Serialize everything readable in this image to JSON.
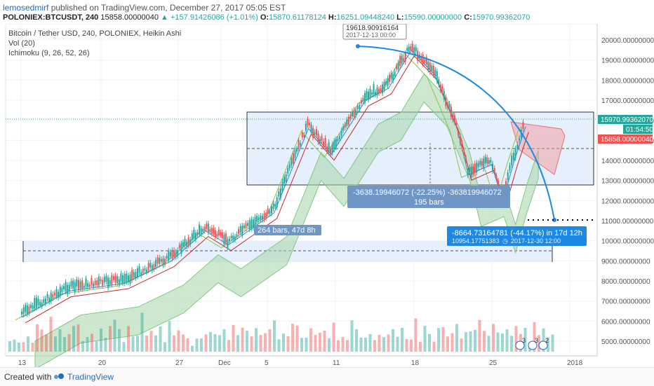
{
  "header": {
    "author": "lemosedmirf",
    "published_text": "published on TradingView.com, December 27, 2017 05:05 EST"
  },
  "symbol_bar": {
    "symbol": "POLONIEX:BTCUSDT, 240",
    "last": "15858.00000040",
    "change": "+157.91426086 (+1.01%)",
    "o_label": "O:",
    "o": "15870.61178124",
    "h_label": "H:",
    "h": "16251.09448240",
    "l_label": "L:",
    "l": "15590.00000000",
    "c_label": "C:",
    "c": "15970.99362070"
  },
  "legend": {
    "title": "Bitcoin / Tether USD, 240, POLONIEX, Heikin Ashi",
    "vol": "Vol (20)",
    "ichimoku": "Ichimoku (9, 26, 52, 26)"
  },
  "annotations": {
    "peak_price": "19618.90916164",
    "peak_date": "2017-12-13 00:00",
    "range_measure_line1": "-3638.19946072 (-22.25%) -363819946072",
    "range_measure_line2": "195 bars",
    "bars_measure": "264 bars, 47d 8h",
    "forecast_line1": "-8664.73164781 (-44.17%) in 17d 12h",
    "forecast_line2": "10954.17751383",
    "forecast_date": "2017-12-30 12:00"
  },
  "price_tags": {
    "close": "15970.99362070",
    "countdown": "01:54:50",
    "last": "15858.00000040"
  },
  "footer": {
    "created_with": "Created with",
    "brand": "TradingView"
  },
  "colors": {
    "up": "#26a69a",
    "down": "#ef5350",
    "accent_blue": "#2196f3",
    "kumo_green": "#a5d6a7",
    "kumo_red": "#ef9a9a",
    "box_blue": "#dbeafb"
  },
  "chart_data": {
    "type": "candlestick",
    "title": "Bitcoin / Tether USD, 240, POLONIEX, Heikin Ashi",
    "y_axis_ticks": [
      "20000.00000000",
      "19000.00000000",
      "18000.00000000",
      "17000.00000000",
      "16000.00000000",
      "15000.00000000",
      "14000.00000000",
      "13000.00000000",
      "12000.00000000",
      "11000.00000000",
      "10000.00000000",
      "9000.00000000",
      "8000.00000000",
      "7000.00000000",
      "6000.00000000",
      "5000.00000000"
    ],
    "x_axis_ticks": [
      "13",
      "20",
      "27",
      "Dec",
      "5",
      "11",
      "18",
      "25",
      "2018"
    ],
    "ylim": [
      4500,
      20500
    ],
    "price_path": [
      {
        "x": "Nov 13",
        "y": 6400
      },
      {
        "x": "Nov 17",
        "y": 7700
      },
      {
        "x": "Nov 22",
        "y": 8100
      },
      {
        "x": "Nov 26",
        "y": 9200
      },
      {
        "x": "Nov 29",
        "y": 10700
      },
      {
        "x": "Dec 1",
        "y": 10000
      },
      {
        "x": "Dec 5",
        "y": 11600
      },
      {
        "x": "Dec 8",
        "y": 15800
      },
      {
        "x": "Dec 10",
        "y": 14500
      },
      {
        "x": "Dec 13",
        "y": 17200
      },
      {
        "x": "Dec 15",
        "y": 17800
      },
      {
        "x": "Dec 17",
        "y": 19700
      },
      {
        "x": "Dec 19",
        "y": 18500
      },
      {
        "x": "Dec 21",
        "y": 15800
      },
      {
        "x": "Dec 22",
        "y": 13500
      },
      {
        "x": "Dec 24",
        "y": 14000
      },
      {
        "x": "Dec 25",
        "y": 12200
      },
      {
        "x": "Dec 26",
        "y": 14200
      },
      {
        "x": "Dec 27",
        "y": 15900
      }
    ],
    "forecast_target": 10954.17751383,
    "range_box": {
      "top": 16500,
      "bottom": 12700
    },
    "volume_levels": [
      0.2,
      0.35,
      0.25,
      0.3,
      0.45,
      0.3,
      0.55,
      0.4,
      0.35,
      0.6,
      0.3,
      0.5,
      0.4,
      0.3,
      0.45,
      0.5,
      0.35,
      0.4,
      0.55,
      0.3,
      0.45,
      0.35,
      0.5,
      0.6,
      0.4,
      0.3,
      0.5,
      0.45,
      0.35,
      0.7,
      0.4,
      0.5,
      0.35,
      0.45,
      0.3,
      0.9,
      0.5,
      0.4,
      0.3,
      0.35
    ]
  }
}
